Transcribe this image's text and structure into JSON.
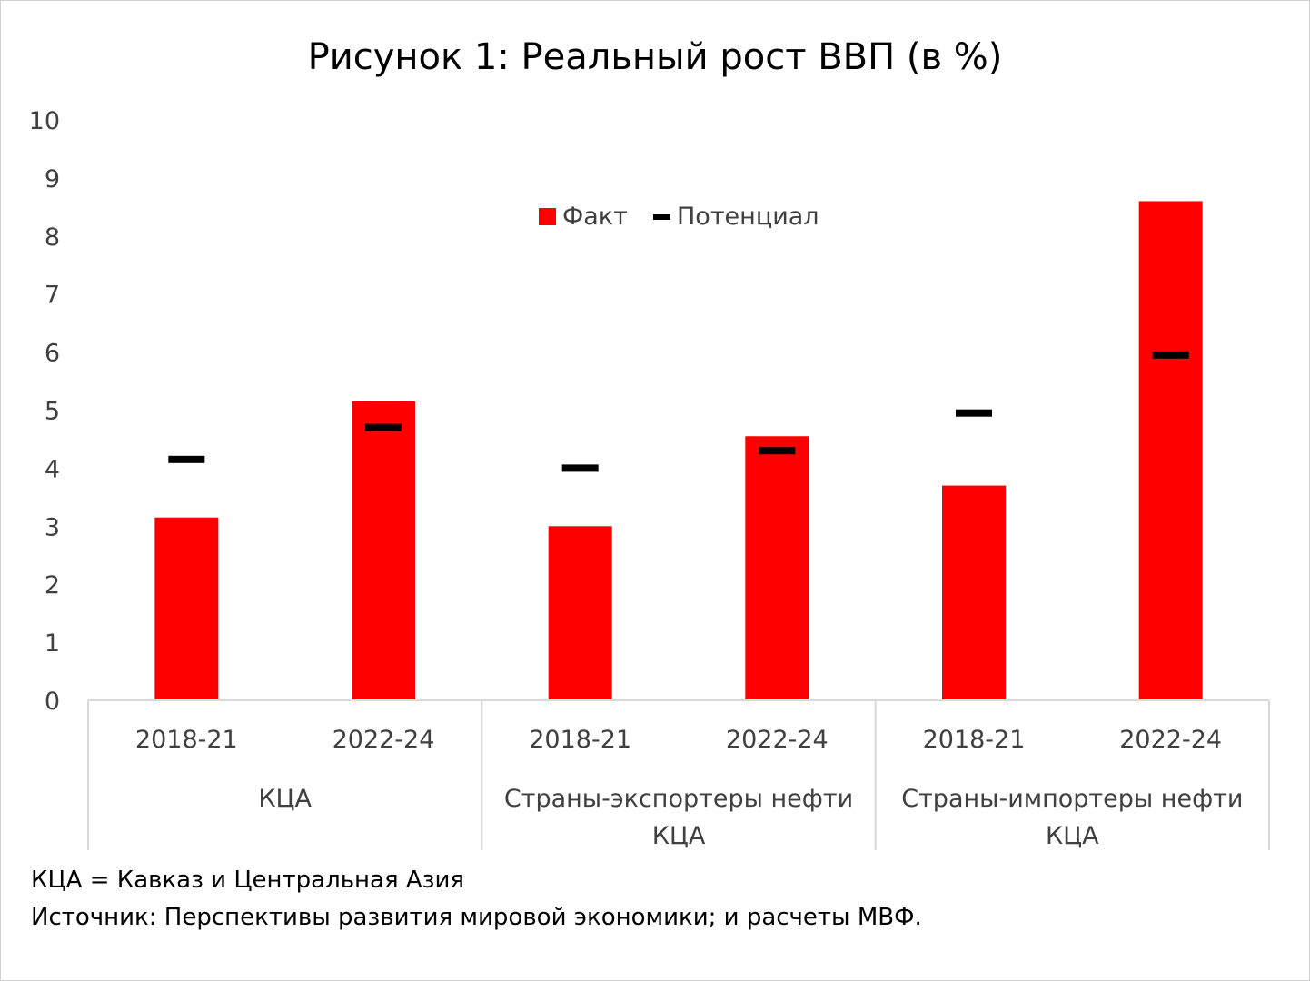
{
  "chart_data": {
    "type": "bar",
    "title": "Рисунок 1: Реальный рост ВВП (в %)",
    "ylim": [
      0,
      10
    ],
    "yticks": [
      0,
      1,
      2,
      3,
      4,
      5,
      6,
      7,
      8,
      9,
      10
    ],
    "grid": false,
    "legend_placement": "top-center",
    "groups": [
      {
        "label_lines": [
          "КЦА"
        ],
        "categories": [
          "2018-21",
          "2022-24"
        ]
      },
      {
        "label_lines": [
          "Страны-экспортеры нефти",
          "КЦА"
        ],
        "categories": [
          "2018-21",
          "2022-24"
        ]
      },
      {
        "label_lines": [
          "Страны-импортеры нефти",
          "КЦА"
        ],
        "categories": [
          "2018-21",
          "2022-24"
        ]
      }
    ],
    "series": [
      {
        "name": "Факт",
        "kind": "bar",
        "color": "#ff0000",
        "values": [
          3.15,
          5.15,
          3.0,
          4.55,
          3.7,
          8.6
        ]
      },
      {
        "name": "Потенциал",
        "kind": "marker",
        "color": "#000000",
        "values": [
          4.15,
          4.7,
          4.0,
          4.3,
          4.95,
          5.95
        ]
      }
    ]
  },
  "notes": {
    "abbrev": "КЦА = Кавказ и Центральная Азия",
    "source": "Источник: Перспективы развития мировой экономики; и расчеты МВФ."
  }
}
